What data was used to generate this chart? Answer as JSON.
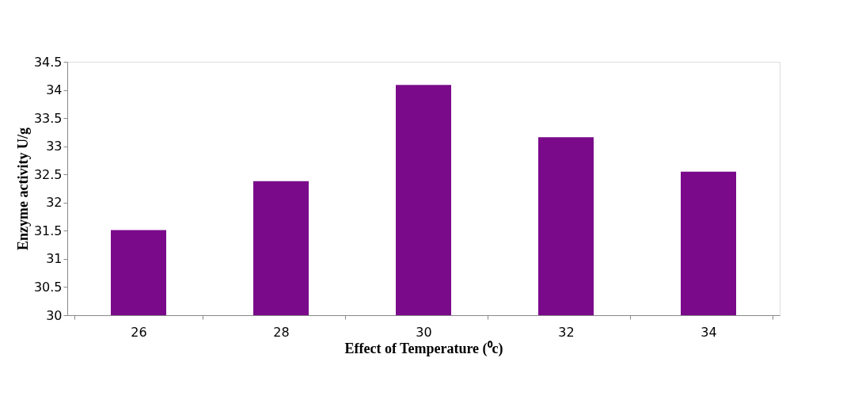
{
  "chart_data": {
    "type": "bar",
    "xlabel": "Effect of Temperature (⁰c)",
    "ylabel": "Enzyme activity U/g",
    "categories": [
      "26",
      "28",
      "30",
      "32",
      "34"
    ],
    "series": [
      {
        "color": "#7a0a8a",
        "values": [
          31.51,
          32.38,
          34.09,
          33.16,
          32.55
        ]
      }
    ],
    "ylim": [
      30,
      34.5
    ],
    "yticks": [
      30,
      30.5,
      31,
      31.5,
      32,
      32.5,
      33,
      33.5,
      34,
      34.5
    ],
    "grid": false
  }
}
